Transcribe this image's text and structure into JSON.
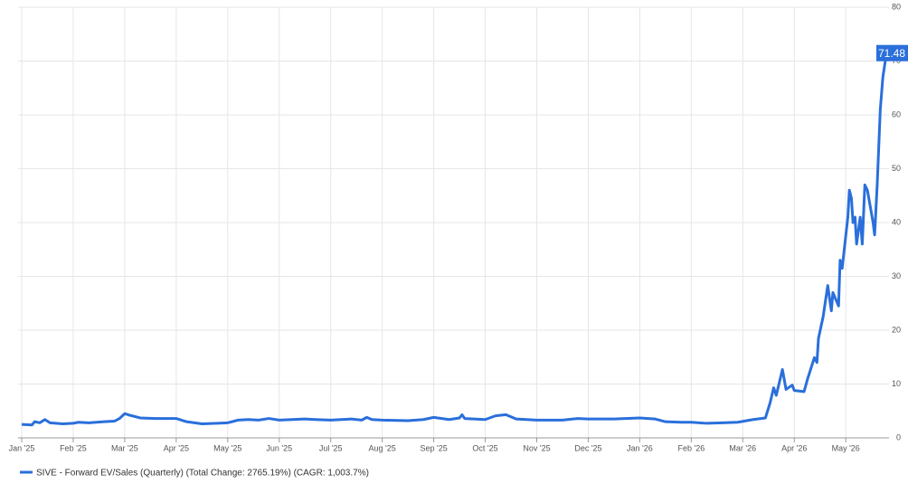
{
  "chart_data": {
    "type": "line",
    "x": [
      0,
      0.2,
      0.25,
      0.35,
      0.45,
      0.55,
      0.8,
      1.0,
      1.1,
      1.3,
      1.6,
      1.8,
      1.9,
      2.0,
      2.1,
      2.3,
      2.6,
      3.0,
      3.2,
      3.5,
      3.8,
      4.0,
      4.2,
      4.4,
      4.6,
      4.8,
      5.0,
      5.5,
      5.7,
      6.0,
      6.4,
      6.6,
      6.7,
      6.8,
      7.0,
      7.5,
      7.8,
      8.0,
      8.3,
      8.5,
      8.55,
      8.6,
      9.0,
      9.2,
      9.4,
      9.6,
      10.0,
      10.5,
      10.8,
      11.0,
      11.5,
      12.0,
      12.3,
      12.5,
      12.8,
      13.0,
      13.3,
      13.6,
      13.9,
      14.2,
      14.44,
      14.53,
      14.6,
      14.65,
      14.77,
      14.84,
      14.96,
      15.0,
      15.19,
      15.26,
      15.39,
      15.44,
      15.47,
      15.56,
      15.65,
      15.72,
      15.75,
      15.86,
      15.89,
      15.93,
      16.04,
      16.07,
      16.11,
      16.14,
      16.18,
      16.21,
      16.28,
      16.32,
      16.37,
      16.42,
      16.53,
      16.56,
      16.61,
      16.67,
      16.72,
      16.79
    ],
    "series": [
      {
        "name": "SIVE - Forward EV/Sales (Quarterly) (Total Change: 2765.19%) (CAGR: 1,003.7%)",
        "color": "#2a6fdb",
        "values": [
          2.5,
          2.4,
          3.0,
          2.8,
          3.4,
          2.8,
          2.6,
          2.7,
          2.9,
          2.8,
          3.0,
          3.1,
          3.6,
          4.5,
          4.2,
          3.7,
          3.6,
          3.6,
          3.0,
          2.6,
          2.7,
          2.8,
          3.3,
          3.4,
          3.3,
          3.6,
          3.3,
          3.5,
          3.4,
          3.3,
          3.5,
          3.3,
          3.8,
          3.4,
          3.3,
          3.2,
          3.4,
          3.8,
          3.4,
          3.7,
          4.3,
          3.6,
          3.4,
          4.1,
          4.3,
          3.5,
          3.3,
          3.3,
          3.6,
          3.5,
          3.5,
          3.7,
          3.5,
          3.0,
          2.9,
          2.9,
          2.7,
          2.8,
          2.9,
          3.4,
          3.7,
          6.5,
          9.3,
          7.9,
          12.7,
          9.0,
          9.8,
          8.8,
          8.6,
          11.0,
          14.9,
          14.0,
          18.5,
          22.5,
          28.3,
          23.6,
          27.0,
          24.5,
          33.0,
          31.5,
          41.0,
          46.0,
          44.5,
          40.0,
          41.0,
          36.0,
          41.0,
          36.0,
          47.0,
          46.0,
          40.0,
          37.7,
          47.0,
          61.0,
          67.0,
          71.48
        ]
      }
    ],
    "xlim": [
      0,
      17.05
    ],
    "xticks": [
      {
        "value": 0,
        "label": "Jan '25"
      },
      {
        "value": 1,
        "label": "Feb '25"
      },
      {
        "value": 2,
        "label": "Mar '25"
      },
      {
        "value": 3,
        "label": "Apr '25"
      },
      {
        "value": 4,
        "label": "May '25"
      },
      {
        "value": 5,
        "label": "Jun '25"
      },
      {
        "value": 6,
        "label": "Jul '25"
      },
      {
        "value": 7,
        "label": "Aug '25"
      },
      {
        "value": 8,
        "label": "Sep '25"
      },
      {
        "value": 9,
        "label": "Oct '25"
      },
      {
        "value": 10,
        "label": "Nov '25"
      },
      {
        "value": 11,
        "label": "Dec '25"
      },
      {
        "value": 12,
        "label": "Jan '26"
      },
      {
        "value": 13,
        "label": "Feb '26"
      },
      {
        "value": 14,
        "label": "Mar '26"
      },
      {
        "value": 15,
        "label": "Apr '26"
      },
      {
        "value": 16,
        "label": "May '26"
      }
    ],
    "ylim": [
      0,
      80
    ],
    "yticks": [
      0,
      10,
      20,
      30,
      40,
      50,
      60,
      70,
      80
    ],
    "grid": true,
    "legend": "bottom-left"
  }
}
